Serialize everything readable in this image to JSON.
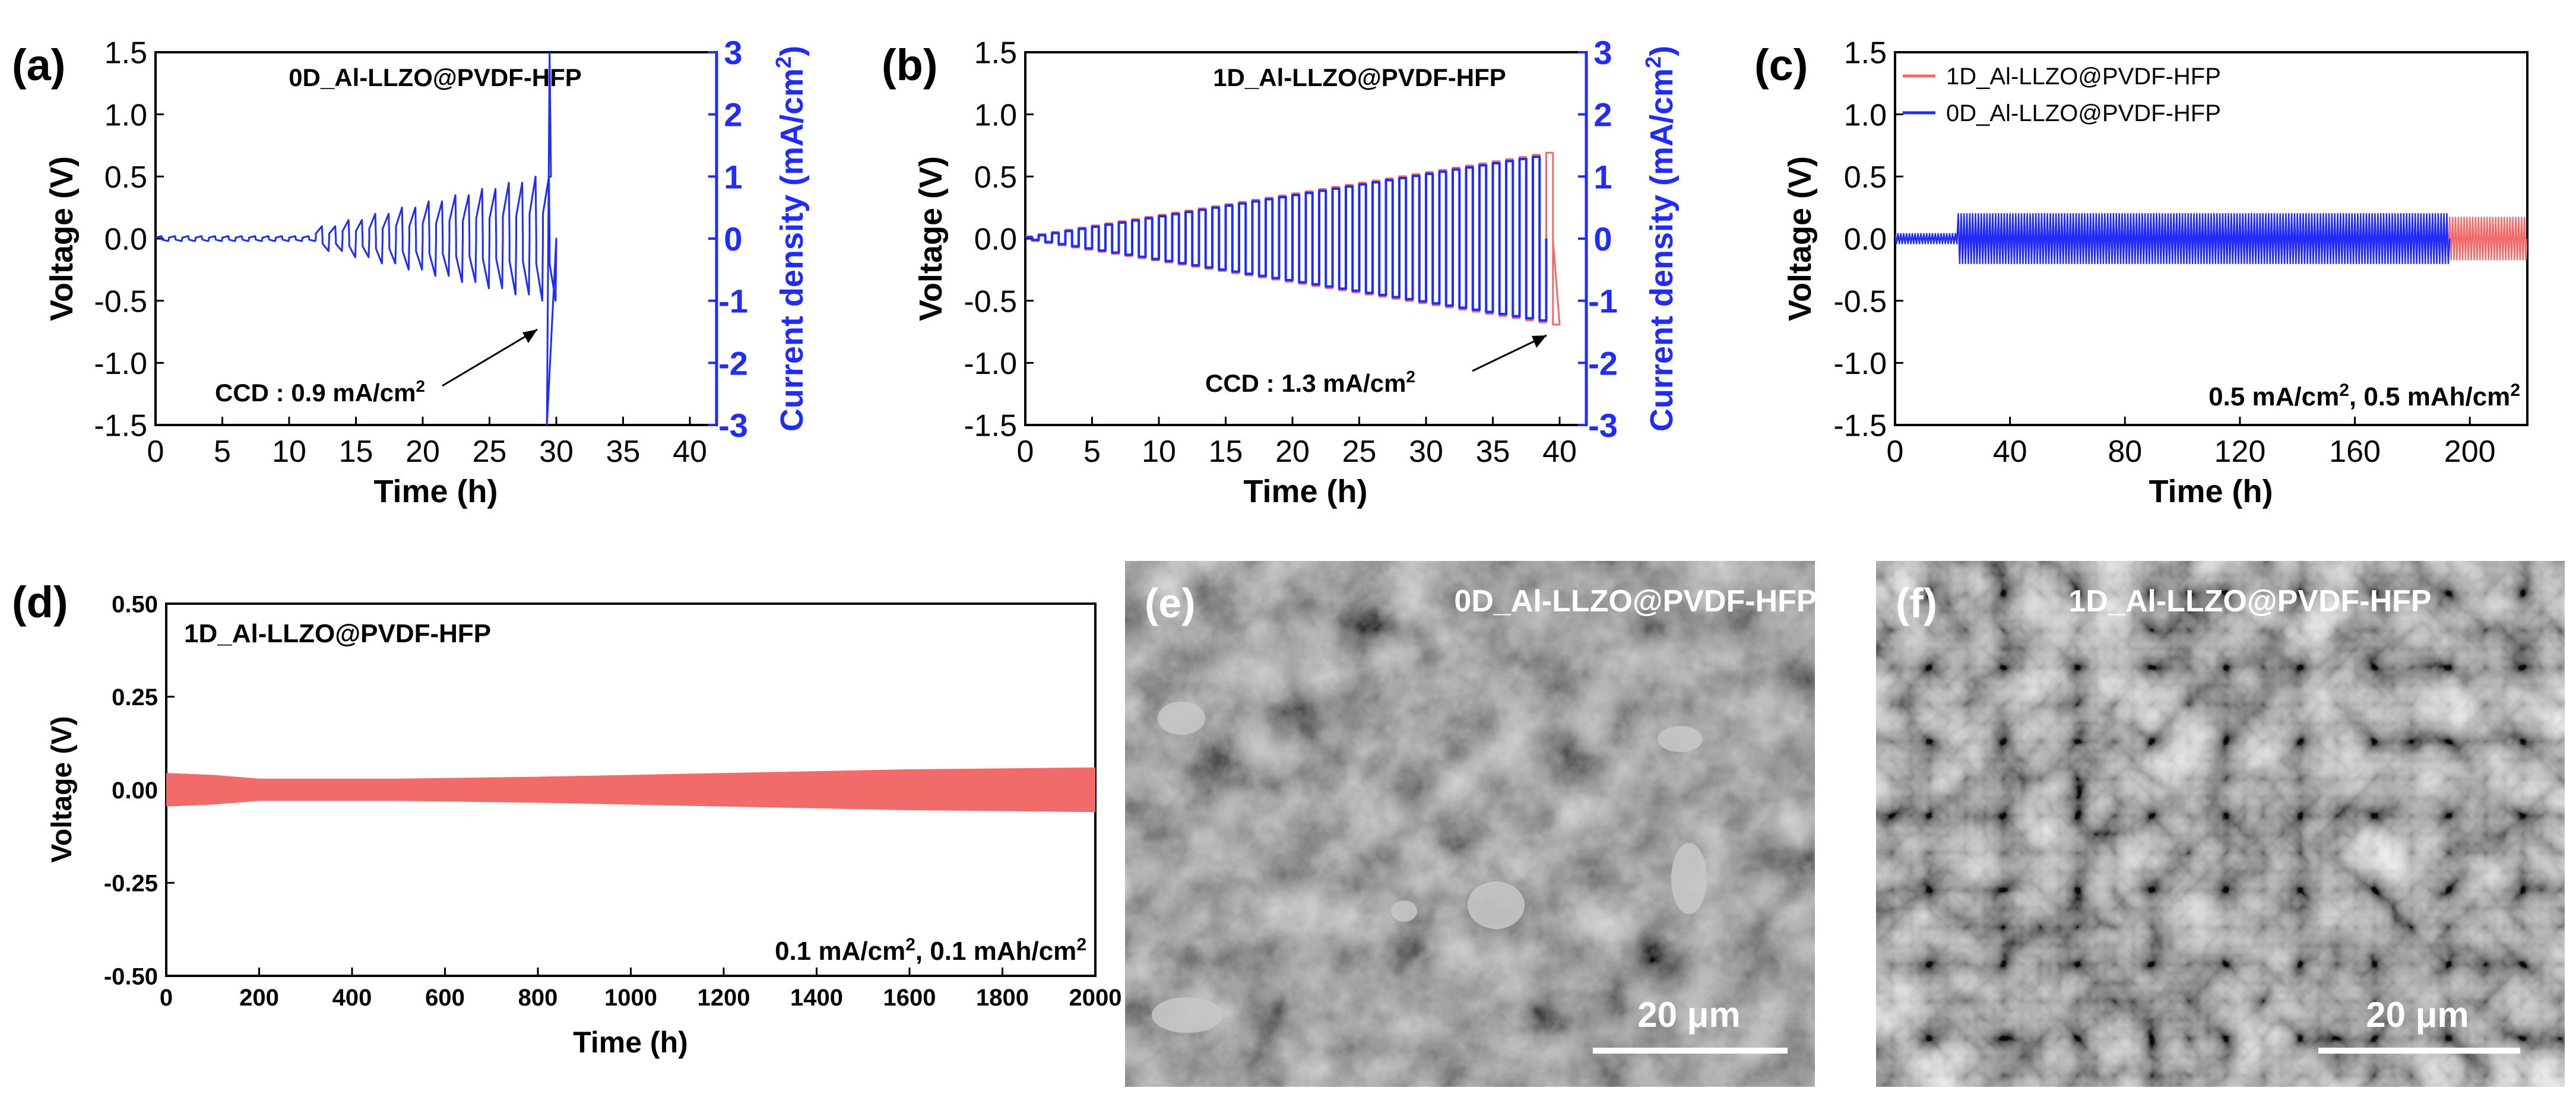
{
  "colors": {
    "red": "#f16b6b",
    "blue": "#1f2bff",
    "axis": "#000000",
    "sem_bg": "#5a5a5a"
  },
  "chart_data": [
    {
      "id": "a",
      "panel_label": "(a)",
      "type": "line",
      "title": "0D_Al-LLZO@PVDF-HFP",
      "xlabel": "Time (h)",
      "ylabel": "Voltage (V)",
      "y2label": "Current density (mA/cm",
      "y2label_sup": "2",
      "y2label_tail": ")",
      "xlim": [
        0,
        42
      ],
      "ylim": [
        -1.5,
        1.5
      ],
      "y2lim": [
        -3,
        3
      ],
      "xticks": [
        "0",
        "5",
        "10",
        "15",
        "20",
        "25",
        "30",
        "35",
        "40"
      ],
      "yticks": [
        "-1.5",
        "-1.0",
        "-0.5",
        "0.0",
        "0.5",
        "1.0",
        "1.5"
      ],
      "y2ticks": [
        "-3",
        "-2",
        "-1",
        "0",
        "1",
        "2",
        "3"
      ],
      "annotation": "CCD : 0.9 mA/cm",
      "annotation_sup": "2",
      "series": [
        {
          "name": "0D_Al-LLZO@PVDF-HFP",
          "color": "blue",
          "cycle_hours": 1,
          "start_steps": 6,
          "step_hours": 2,
          "amp_start": 0.1,
          "amp_step": 0.1,
          "end_hour": 29.5,
          "short_circuit_hour": 29.3,
          "tail_voltage": 0.5
        }
      ]
    },
    {
      "id": "b",
      "panel_label": "(b)",
      "type": "line",
      "title": "1D_Al-LLZO@PVDF-HFP",
      "xlabel": "Time (h)",
      "ylabel": "Voltage (V)",
      "y2label": "Current density (mA/cm",
      "y2label_sup": "2",
      "y2label_tail": ")",
      "xlim": [
        0,
        42
      ],
      "ylim": [
        -1.5,
        1.5
      ],
      "y2lim": [
        -3,
        3
      ],
      "xticks": [
        "0",
        "5",
        "10",
        "15",
        "20",
        "25",
        "30",
        "35",
        "40"
      ],
      "yticks": [
        "-1.5",
        "-1.0",
        "-0.5",
        "0.0",
        "0.5",
        "1.0",
        "1.5"
      ],
      "y2ticks": [
        "-3",
        "-2",
        "-1",
        "0",
        "1",
        "2",
        "3"
      ],
      "annotation": "CCD : 1.3 mA/cm",
      "annotation_sup": "2",
      "series": [
        {
          "name": "Voltage",
          "color": "red",
          "cycle_hours": 1,
          "amp_start": 0.02,
          "amp_end": 0.7,
          "end_hour": 39.5
        },
        {
          "name": "Current density",
          "color": "blue",
          "cycle_hours": 1,
          "amp_start": 0.02,
          "amp_end": 1.35,
          "end_hour": 39
        }
      ]
    },
    {
      "id": "c",
      "panel_label": "(c)",
      "type": "line",
      "xlabel": "Time (h)",
      "ylabel": "Voltage (V)",
      "xlim": [
        0,
        220
      ],
      "ylim": [
        -1.5,
        1.5
      ],
      "xticks": [
        "0",
        "40",
        "80",
        "120",
        "160",
        "200"
      ],
      "yticks": [
        "-1.5",
        "-1.0",
        "-0.5",
        "0.0",
        "0.5",
        "1.0",
        "1.5"
      ],
      "condition_a": "0.5 mA/cm",
      "condition_sup_a": "2",
      "condition_b": ", 0.5 mAh/cm",
      "condition_sup_b": "2",
      "legend_position": "top-left",
      "series": [
        {
          "name": "1D_Al-LLZO@PVDF-HFP",
          "color": "red",
          "pre_amp": 0.03,
          "amp": 0.17,
          "step_hour": 22,
          "end_hour": 220
        },
        {
          "name": "0D_Al-LLZO@PVDF-HFP",
          "color": "blue",
          "pre_amp": 0.04,
          "amp": 0.2,
          "step_hour": 22,
          "end_hour": 193
        }
      ]
    },
    {
      "id": "d",
      "panel_label": "(d)",
      "type": "area",
      "title": "1D_Al-LLZO@PVDF-HFP",
      "xlabel": "Time (h)",
      "ylabel": "Voltage (V)",
      "xlim": [
        0,
        2000
      ],
      "ylim": [
        -0.5,
        0.5
      ],
      "xticks": [
        "0",
        "200",
        "400",
        "600",
        "800",
        "1000",
        "1200",
        "1400",
        "1600",
        "1800",
        "2000"
      ],
      "yticks": [
        "-0.50",
        "-0.25",
        "0.00",
        "0.25",
        "0.50"
      ],
      "condition_a": "0.1 mA/cm",
      "condition_sup_a": "2",
      "condition_b": ", 0.1 mAh/cm",
      "condition_sup_b": "2",
      "series": [
        {
          "name": "1D_Al-LLZO@PVDF-HFP",
          "color": "red",
          "envelope": [
            [
              0,
              0.045
            ],
            [
              100,
              0.04
            ],
            [
              200,
              0.03
            ],
            [
              500,
              0.03
            ],
            [
              800,
              0.035
            ],
            [
              1200,
              0.045
            ],
            [
              1600,
              0.055
            ],
            [
              2000,
              0.06
            ]
          ]
        }
      ]
    }
  ],
  "images": [
    {
      "id": "e",
      "panel_label": "(e)",
      "caption": "0D_Al-LLZO@PVDF-HFP",
      "scale_bar": "20 μm"
    },
    {
      "id": "f",
      "panel_label": "(f)",
      "caption": "1D_Al-LLZO@PVDF-HFP",
      "scale_bar": "20 μm"
    }
  ]
}
